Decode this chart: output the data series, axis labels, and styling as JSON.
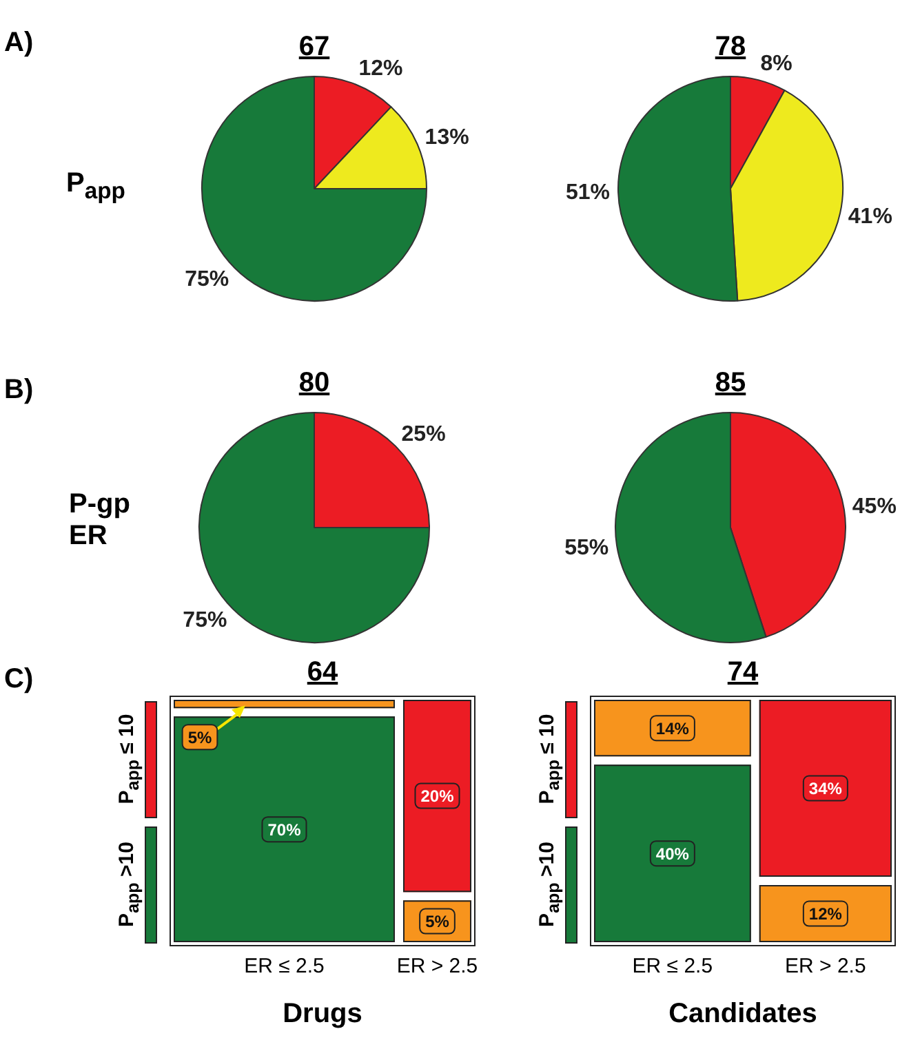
{
  "chart_data": [
    {
      "type": "pie",
      "title": "67",
      "annotations": [
        "A)",
        "P$_{app}$"
      ],
      "categories": [
        null,
        null,
        null
      ],
      "values": [
        12,
        13,
        75
      ],
      "colors": [
        "#ec1c24",
        "#eeea1e",
        "#177a3a"
      ],
      "value_labels": [
        "12%",
        "13%",
        "75%"
      ]
    },
    {
      "type": "pie",
      "title": "78",
      "categories": [
        null,
        null,
        null
      ],
      "values": [
        8,
        41,
        51
      ],
      "colors": [
        "#ec1c24",
        "#eeea1e",
        "#177a3a"
      ],
      "value_labels": [
        "8%",
        "41%",
        "51%"
      ]
    },
    {
      "type": "pie",
      "title": "80",
      "annotations": [
        "B)",
        "P-gp ER"
      ],
      "categories": [
        null,
        null
      ],
      "values": [
        25,
        75
      ],
      "colors": [
        "#ec1c24",
        "#177a3a"
      ],
      "value_labels": [
        "25%",
        "75%"
      ]
    },
    {
      "type": "pie",
      "title": "85",
      "categories": [
        null,
        null
      ],
      "values": [
        45,
        55
      ],
      "colors": [
        "#ec1c24",
        "#177a3a"
      ],
      "value_labels": [
        "45%",
        "55%"
      ]
    },
    {
      "type": "other",
      "title": "64",
      "annotations": [
        "C)",
        "P$_{app}$ ≤ 10",
        "P$_{app}$ >10"
      ],
      "xlabel": "Drugs",
      "categories": [
        "ER ≤ 2.5",
        "ER > 2.5"
      ],
      "series": [
        {
          "values": [
            5,
            20
          ],
          "colors": [
            "#f7941d",
            "#ec1c24"
          ],
          "value_labels": [
            "5%",
            "20%"
          ]
        },
        {
          "values": [
            70,
            5
          ],
          "colors": [
            "#177a3a",
            "#f7941d"
          ],
          "value_labels": [
            "70%",
            "5%"
          ]
        }
      ]
    },
    {
      "type": "other",
      "title": "74",
      "annotations": [
        "P$_{app}$ ≤ 10",
        "P$_{app}$ >10"
      ],
      "xlabel": "Candidates",
      "categories": [
        "ER ≤ 2.5",
        "ER > 2.5"
      ],
      "series": [
        {
          "values": [
            14,
            34
          ],
          "colors": [
            "#f7941d",
            "#ec1c24"
          ],
          "value_labels": [
            "14%",
            "34%"
          ]
        },
        {
          "values": [
            40,
            12
          ],
          "colors": [
            "#177a3a",
            "#f7941d"
          ],
          "value_labels": [
            "40%",
            "12%"
          ]
        }
      ]
    }
  ]
}
